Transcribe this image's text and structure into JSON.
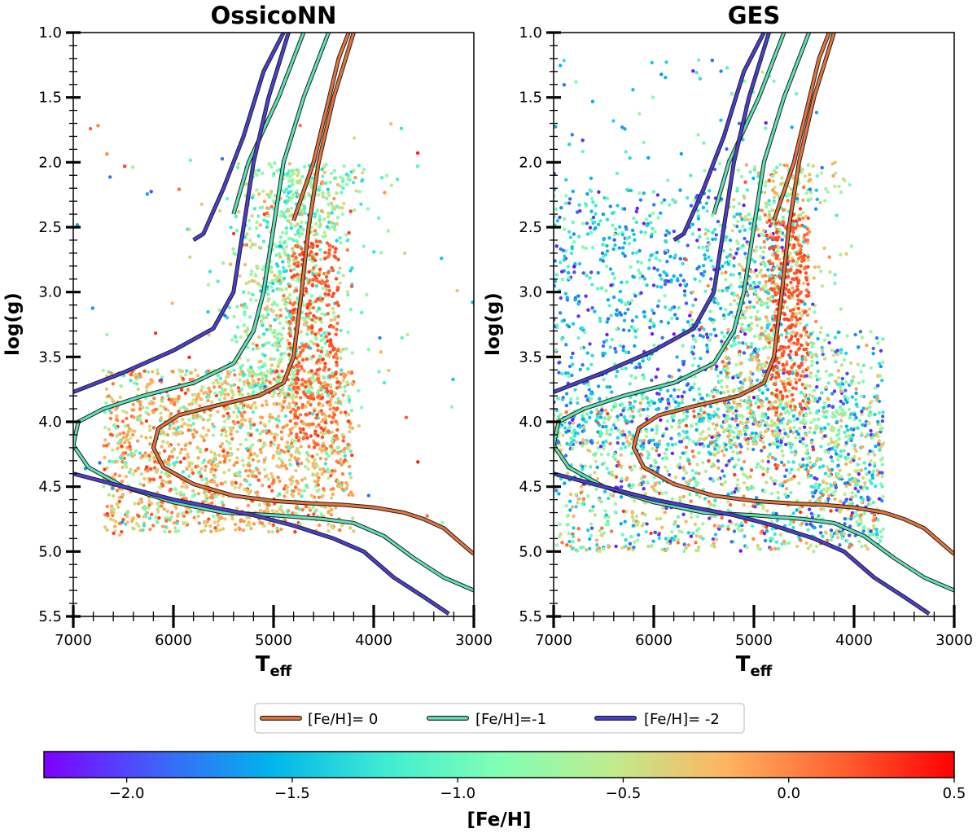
{
  "colors": {
    "feh_0": "#e8743b",
    "feh_m1": "#5ee3bb",
    "feh_m2": "#4b3fd6",
    "colormap": [
      "#7f00ff",
      "#3f61fa",
      "#00b5eb",
      "#40ecd3",
      "#80ffb4",
      "#c0eb8d",
      "#ffb360",
      "#ff6131",
      "#ff0000"
    ]
  },
  "chart_data": [
    {
      "type": "scatter",
      "title": "OssicoNN",
      "xlabel": "T",
      "xlabel_sub": "eff",
      "ylabel": "log(g)",
      "xlim": [
        7000,
        3000
      ],
      "ylim": [
        5.5,
        1.0
      ],
      "xticks": [
        "7000",
        "6000",
        "5000",
        "4000",
        "3000"
      ],
      "yticks": [
        "1.0",
        "1.5",
        "2.0",
        "2.5",
        "3.0",
        "3.5",
        "4.0",
        "4.5",
        "5.0",
        "5.5"
      ],
      "distribution": "dense metal-rich (-0.8 to 0.3) cloud, Teff 6800-4200 K, log(g) 2.0-4.9, following the isochrones"
    },
    {
      "type": "scatter",
      "title": "GES",
      "xlabel": "T",
      "xlabel_sub": "eff",
      "ylabel": "log(g)",
      "xlim": [
        7000,
        3000
      ],
      "ylim": [
        5.5,
        1.0
      ],
      "xticks": [
        "7000",
        "6000",
        "5000",
        "4000",
        "3000"
      ],
      "yticks": [
        "1.0",
        "1.5",
        "2.0",
        "2.5",
        "3.0",
        "3.5",
        "4.0",
        "4.5",
        "5.0",
        "5.5"
      ],
      "distribution": "broader spread including metal-poor (-2.2 to -1.0) stars over Teff 7000-3700 K, log(g) 1.2-5.0"
    }
  ],
  "isochrones": [
    {
      "label": "[Fe/H]= 0",
      "feh": 0,
      "main": [
        [
          3000,
          5.02
        ],
        [
          3150,
          4.92
        ],
        [
          3300,
          4.82
        ],
        [
          3500,
          4.75
        ],
        [
          3700,
          4.7
        ],
        [
          4000,
          4.66
        ],
        [
          4300,
          4.64
        ],
        [
          4600,
          4.63
        ],
        [
          5000,
          4.61
        ],
        [
          5400,
          4.57
        ],
        [
          5800,
          4.48
        ],
        [
          6100,
          4.35
        ],
        [
          6200,
          4.2
        ],
        [
          6150,
          4.05
        ],
        [
          5950,
          3.95
        ],
        [
          5600,
          3.88
        ],
        [
          5150,
          3.8
        ],
        [
          4900,
          3.7
        ],
        [
          4800,
          3.5
        ],
        [
          4720,
          3.0
        ],
        [
          4650,
          2.5
        ],
        [
          4550,
          2.0
        ],
        [
          4400,
          1.5
        ],
        [
          4200,
          1.0
        ]
      ],
      "hb": [
        [
          4800,
          2.45
        ],
        [
          4600,
          2.0
        ],
        [
          4350,
          1.2
        ],
        [
          4250,
          1.0
        ]
      ]
    },
    {
      "label": "[Fe/H]=-1",
      "feh": -1,
      "main": [
        [
          3000,
          5.3
        ],
        [
          3300,
          5.2
        ],
        [
          3600,
          5.05
        ],
        [
          3900,
          4.88
        ],
        [
          4200,
          4.78
        ],
        [
          4500,
          4.75
        ],
        [
          5000,
          4.72
        ],
        [
          5500,
          4.7
        ],
        [
          6000,
          4.62
        ],
        [
          6500,
          4.5
        ],
        [
          6850,
          4.35
        ],
        [
          7000,
          4.18
        ],
        [
          6950,
          4.0
        ],
        [
          6700,
          3.9
        ],
        [
          6300,
          3.8
        ],
        [
          5800,
          3.7
        ],
        [
          5400,
          3.55
        ],
        [
          5200,
          3.3
        ],
        [
          5100,
          3.0
        ],
        [
          5000,
          2.5
        ],
        [
          4900,
          2.0
        ],
        [
          4700,
          1.5
        ],
        [
          4450,
          1.0
        ]
      ],
      "hb": [
        [
          5400,
          2.4
        ],
        [
          5250,
          2.0
        ],
        [
          4950,
          1.5
        ],
        [
          4700,
          1.0
        ]
      ]
    },
    {
      "label": "[Fe/H]= -2",
      "feh": -2,
      "main": [
        [
          3250,
          5.48
        ],
        [
          3500,
          5.35
        ],
        [
          3800,
          5.2
        ],
        [
          4100,
          5.0
        ],
        [
          4400,
          4.9
        ],
        [
          4800,
          4.8
        ],
        [
          5200,
          4.72
        ],
        [
          5600,
          4.66
        ],
        [
          6000,
          4.6
        ],
        [
          6500,
          4.5
        ],
        [
          7000,
          4.4
        ]
      ],
      "rgb": [
        [
          7000,
          3.77
        ],
        [
          6500,
          3.62
        ],
        [
          6000,
          3.45
        ],
        [
          5600,
          3.28
        ],
        [
          5400,
          3.0
        ],
        [
          5300,
          2.5
        ],
        [
          5200,
          2.0
        ],
        [
          5050,
          1.5
        ],
        [
          4850,
          1.0
        ]
      ],
      "hb": [
        [
          5800,
          2.6
        ],
        [
          5700,
          2.55
        ],
        [
          5500,
          2.2
        ],
        [
          5300,
          1.8
        ],
        [
          5100,
          1.3
        ],
        [
          4900,
          1.0
        ]
      ]
    }
  ],
  "legend": {
    "entries": [
      "[Fe/H]= 0",
      "[Fe/H]=-1",
      "[Fe/H]= -2"
    ]
  },
  "colorbar": {
    "label": "[Fe/H]",
    "min": -2.25,
    "max": 0.5,
    "ticks": [
      "−2.0",
      "−1.5",
      "−1.0",
      "−0.5",
      "0.0",
      "0.5"
    ],
    "tick_values": [
      -2.0,
      -1.5,
      -1.0,
      -0.5,
      0.0,
      0.5
    ]
  }
}
